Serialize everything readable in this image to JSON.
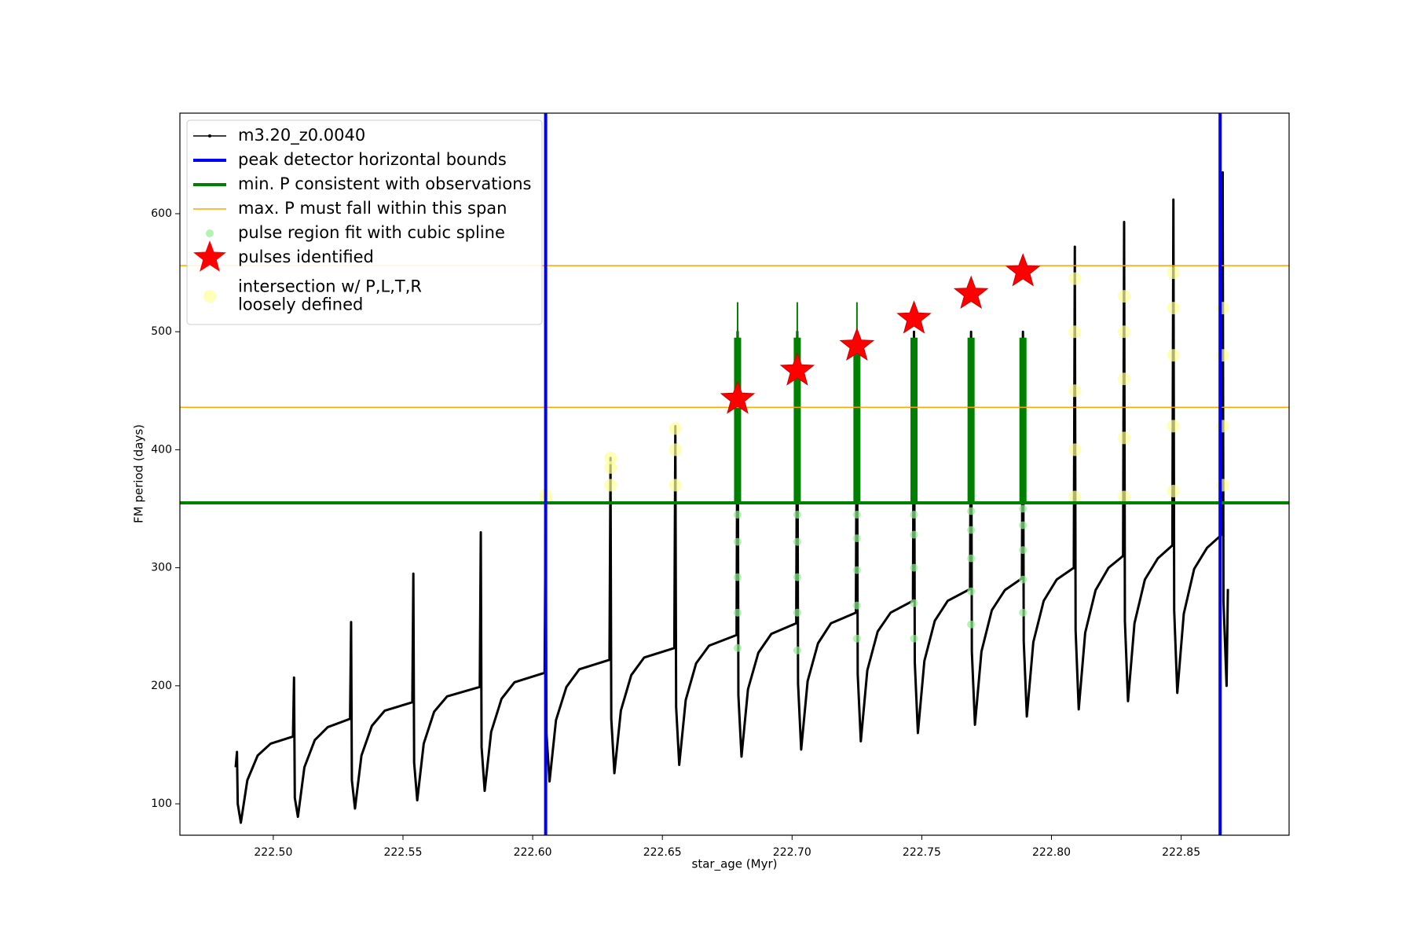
{
  "chart_data": {
    "type": "line",
    "xlabel": "star_age (Myr)",
    "ylabel": "FM period (days)",
    "xlim": [
      222.464,
      222.8916
    ],
    "ylim": [
      73.4,
      685.2
    ],
    "xticks": [
      {
        "value": 222.5,
        "label": "222.50"
      },
      222.55,
      {
        "value": 222.6,
        "label": "222.60"
      },
      222.65,
      {
        "value": 222.7,
        "label": "222.70"
      },
      222.75,
      {
        "value": 222.8,
        "label": "222.80"
      },
      222.85
    ],
    "yticks": [
      100,
      200,
      300,
      400,
      500,
      600
    ],
    "grid": false,
    "legend": "upper left",
    "series": [
      {
        "name": "m3.20_z0.0040",
        "type": "line",
        "color": "#000000",
        "linewidth": 3,
        "x": [
          222.4855,
          222.486,
          222.4863,
          222.4875,
          222.49,
          222.494,
          222.499,
          222.5076,
          222.508,
          222.5083,
          222.5095,
          222.512,
          222.516,
          222.521,
          222.5296,
          222.53,
          222.5303,
          222.5315,
          222.534,
          222.538,
          222.543,
          222.5536,
          222.554,
          222.5543,
          222.5555,
          222.558,
          222.562,
          222.567,
          222.5796,
          222.58,
          222.5803,
          222.5815,
          222.584,
          222.588,
          222.593,
          222.6046,
          222.605,
          222.6053,
          222.6065,
          222.609,
          222.613,
          222.618,
          222.6296,
          222.63,
          222.6303,
          222.6315,
          222.634,
          222.638,
          222.643,
          222.6546,
          222.655,
          222.6553,
          222.6565,
          222.659,
          222.663,
          222.668,
          222.6786,
          222.679,
          222.6793,
          222.6805,
          222.683,
          222.687,
          222.692,
          222.7016,
          222.702,
          222.7023,
          222.7035,
          222.706,
          222.71,
          222.715,
          222.7246,
          222.725,
          222.7253,
          222.7265,
          222.729,
          222.733,
          222.738,
          222.7466,
          222.747,
          222.7473,
          222.7485,
          222.751,
          222.755,
          222.76,
          222.7686,
          222.769,
          222.7693,
          222.7705,
          222.773,
          222.777,
          222.782,
          222.7886,
          222.789,
          222.7893,
          222.7905,
          222.793,
          222.797,
          222.802,
          222.8086,
          222.809,
          222.8093,
          222.8105,
          222.813,
          222.817,
          222.822,
          222.8276,
          222.828,
          222.8283,
          222.8295,
          222.832,
          222.836,
          222.841,
          222.8466,
          222.847,
          222.8473,
          222.8485,
          222.851,
          222.855,
          222.86,
          222.8656,
          222.866,
          222.8663,
          222.8675,
          222.868
        ],
        "values": [
          131,
          144,
          100,
          84,
          120,
          141,
          151,
          157,
          207,
          105,
          89,
          131,
          154,
          165,
          172,
          254,
          120,
          96,
          141,
          166,
          179,
          186,
          295,
          135,
          103,
          151,
          178,
          191,
          199,
          330,
          148,
          111,
          161,
          189,
          203,
          211,
          355,
          160,
          119,
          171,
          199,
          214,
          222,
          393,
          172,
          126,
          179,
          209,
          224,
          232,
          420,
          182,
          133,
          188,
          219,
          234,
          243,
          500,
          192,
          140,
          197,
          228,
          244,
          253,
          500,
          202,
          146,
          204,
          236,
          253,
          262,
          500,
          210,
          153,
          213,
          246,
          262,
          272,
          500,
          220,
          160,
          221,
          255,
          272,
          282,
          500,
          229,
          167,
          229,
          264,
          281,
          291,
          500,
          238,
          174,
          237,
          272,
          290,
          300,
          572,
          247,
          180,
          245,
          281,
          300,
          310,
          593,
          255,
          187,
          253,
          290,
          308,
          319,
          612,
          264,
          194,
          261,
          299,
          317,
          328,
          635,
          272,
          200,
          282
        ]
      },
      {
        "name": "peak detector horizontal bounds",
        "type": "vline",
        "color": "#0000ff",
        "linewidth": 4,
        "x": [
          222.605,
          222.865
        ]
      },
      {
        "name": "min. P consistent with observations",
        "type": "hline",
        "color": "#008000",
        "linewidth": 4,
        "values": [
          355
        ]
      },
      {
        "name": "max. P must fall within this span",
        "type": "hline",
        "color": "#ffa500",
        "linewidth": 1.5,
        "values": [
          436,
          556
        ]
      },
      {
        "name": "pulse region fit with cubic spline",
        "type": "scatter",
        "color": "#90ee90",
        "size": 5,
        "x": [
          222.679,
          222.679,
          222.679,
          222.679,
          222.679,
          222.702,
          222.702,
          222.702,
          222.702,
          222.702,
          222.725,
          222.725,
          222.725,
          222.725,
          222.725,
          222.747,
          222.747,
          222.747,
          222.747,
          222.747,
          222.769,
          222.769,
          222.769,
          222.769,
          222.769,
          222.789,
          222.789,
          222.789,
          222.789,
          222.789
        ],
        "values": [
          232,
          262,
          292,
          322,
          345,
          230,
          262,
          292,
          322,
          345,
          240,
          268,
          298,
          325,
          345,
          240,
          270,
          300,
          328,
          345,
          252,
          280,
          308,
          332,
          348,
          262,
          290,
          315,
          336,
          350
        ]
      },
      {
        "name": "pulses identified",
        "type": "star",
        "color": "#ff0000",
        "size": 22,
        "x": [
          222.679,
          222.702,
          222.725,
          222.747,
          222.769,
          222.789
        ],
        "values": [
          443,
          467,
          488,
          511,
          532,
          551
        ]
      },
      {
        "name": "intersection w/ P,L,T,R\nloosely defined",
        "type": "scatter",
        "color": "#ffff99",
        "size": 8,
        "x": [
          222.605,
          222.605,
          222.63,
          222.63,
          222.63,
          222.655,
          222.655,
          222.655,
          222.809,
          222.809,
          222.809,
          222.809,
          222.809,
          222.828,
          222.828,
          222.828,
          222.828,
          222.828,
          222.847,
          222.847,
          222.847,
          222.847,
          222.847,
          222.866,
          222.866,
          222.866,
          222.866
        ],
        "values": [
          358,
          362,
          370,
          385,
          393,
          370,
          400,
          418,
          360,
          400,
          450,
          500,
          545,
          360,
          410,
          460,
          500,
          530,
          365,
          420,
          480,
          520,
          550,
          370,
          420,
          480,
          520
        ]
      },
      {
        "type": "line",
        "color": "#008000",
        "linewidth": 9,
        "x": [
          222.679,
          222.679,
          null,
          222.702,
          222.702,
          null,
          222.725,
          222.725,
          null,
          222.747,
          222.747,
          null,
          222.769,
          222.769,
          null,
          222.789,
          222.789
        ],
        "values": [
          355,
          495,
          null,
          355,
          495,
          null,
          355,
          495,
          null,
          355,
          495,
          null,
          355,
          495,
          null,
          355,
          495
        ]
      },
      {
        "type": "line",
        "color": "#008000",
        "linewidth": 2,
        "x": [
          222.679,
          222.679,
          null,
          222.702,
          222.702,
          null,
          222.725,
          222.725
        ],
        "values": [
          495,
          525,
          null,
          495,
          525,
          null,
          495,
          525
        ]
      }
    ]
  }
}
